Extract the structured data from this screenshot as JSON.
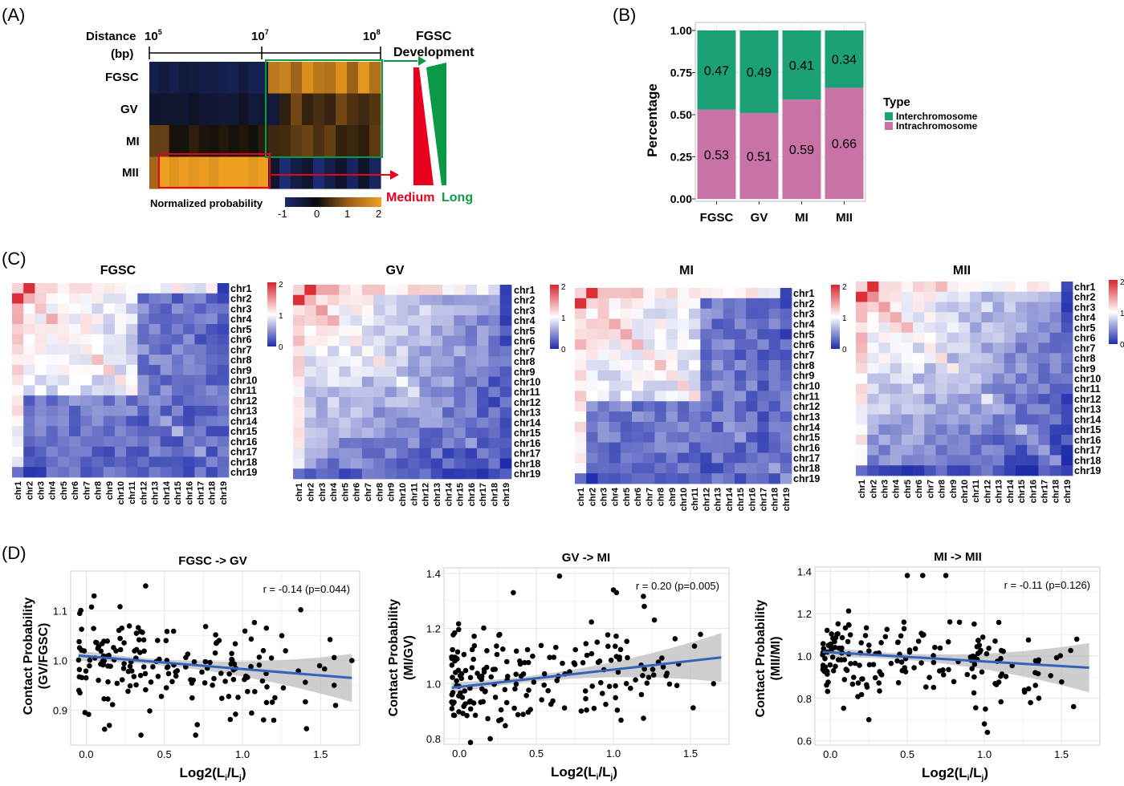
{
  "panels": {
    "a": "(A)",
    "b": "(B)",
    "c": "(C)",
    "d": "(D)"
  },
  "panel_a": {
    "distance_label": "Distance",
    "distance_unit": "(bp)",
    "ticks": [
      {
        "base": "10",
        "exp": "5"
      },
      {
        "base": "10",
        "exp": "7"
      },
      {
        "base": "10",
        "exp": "8"
      }
    ],
    "rows": [
      "FGSC",
      "GV",
      "MI",
      "MII"
    ],
    "dev_title_1": "FGSC",
    "dev_title_2": "Development",
    "medium": "Medium",
    "long": "Long",
    "colorbar_label": "Normalized probability",
    "colorbar_ticks": [
      "-1",
      "0",
      "1",
      "2"
    ],
    "colors": {
      "medium": "#e8001c",
      "long": "#0a9a45",
      "low": "#1a2a6e",
      "mid": "#0a0a0a",
      "high": "#f0a020"
    }
  },
  "chart_data": [
    {
      "type": "bar",
      "panel": "B",
      "stacked": true,
      "categories": [
        "FGSC",
        "GV",
        "MI",
        "MII"
      ],
      "series": [
        {
          "name": "Intrachromosome",
          "values": [
            0.53,
            0.51,
            0.59,
            0.66
          ],
          "labels": [
            "0.53",
            "0.51",
            "0.59",
            "0.66"
          ],
          "color": "#c972a6"
        },
        {
          "name": "Interchromosome",
          "values": [
            0.47,
            0.49,
            0.41,
            0.34
          ],
          "labels": [
            "0.47",
            "0.49",
            "0.41",
            "0.34"
          ],
          "color": "#1ba077"
        }
      ],
      "ylabel": "Percentage",
      "ylim": [
        0,
        1
      ],
      "yticks": [
        "0.00",
        "0.25",
        "0.50",
        "0.75",
        "1.00"
      ],
      "legend_title": "Type",
      "legend_order": [
        "Interchromosome",
        "Intrachromosome"
      ],
      "legend_position": "right",
      "grid": true
    },
    {
      "type": "heatmap",
      "panel": "C",
      "chromosomes": [
        "chr1",
        "chr2",
        "chr3",
        "chr4",
        "chr5",
        "chr6",
        "chr7",
        "chr8",
        "chr9",
        "chr10",
        "chr11",
        "chr12",
        "chr13",
        "chr14",
        "chr15",
        "chr16",
        "chr17",
        "chr18",
        "chr19"
      ],
      "colorbar_ticks": [
        "2",
        "1",
        "0"
      ],
      "colors": {
        "low": "#1e2cab",
        "mid": "#ffffff",
        "high": "#d9232c"
      },
      "maps": [
        {
          "title": "FGSC",
          "clusters": [
            [
              1,
              11
            ],
            [
              12,
              19
            ]
          ],
          "strength": 1.0
        },
        {
          "title": "GV",
          "clusters": [
            [
              1,
              19
            ]
          ],
          "strength": 0.75
        },
        {
          "title": "MI",
          "clusters": [
            [
              1,
              11
            ],
            [
              12,
              19
            ]
          ],
          "strength": 0.85
        },
        {
          "title": "MII",
          "clusters": [
            [
              1,
              19
            ]
          ],
          "strength": 0.6
        }
      ]
    },
    {
      "type": "scatter",
      "panel": "D",
      "title": "FGSC -> GV",
      "annotation": "r = -0.14 (p=0.044)",
      "ylabel_1": "Contact Probability",
      "ylabel_2": "(GV/FGSC)",
      "xlabel": "Log2(L",
      "xlim": [
        -0.1,
        1.75
      ],
      "ylim": [
        0.83,
        1.18
      ],
      "xticks": [
        "0.0",
        "0.5",
        "1.0",
        "1.5"
      ],
      "yticks": [
        "0.9",
        "1.0",
        "1.1"
      ],
      "ytick_values": [
        0.9,
        1.0,
        1.1
      ],
      "fit": {
        "x": [
          -0.05,
          1.7
        ],
        "y": [
          1.01,
          0.965
        ]
      },
      "points": {
        "count": 180,
        "seed": 11,
        "center": 1.0,
        "spread": 0.065,
        "slope": -0.03,
        "outliers": [
          [
            0.38,
            1.15
          ],
          [
            0.05,
            1.13
          ],
          [
            0.7,
            0.85
          ],
          [
            1.7,
            1.0
          ],
          [
            1.2,
            0.88
          ],
          [
            0.35,
            0.85
          ]
        ]
      }
    },
    {
      "type": "scatter",
      "panel": "D",
      "title": "GV -> MI",
      "annotation": "r = 0.20 (p=0.005)",
      "ylabel_1": "Contact Probability",
      "ylabel_2": "(MI/GV)",
      "xlabel": "Log2(L",
      "xlim": [
        -0.1,
        1.75
      ],
      "ylim": [
        0.78,
        1.42
      ],
      "xticks": [
        "0.0",
        "0.5",
        "1.0",
        "1.5"
      ],
      "yticks": [
        "0.8",
        "1.0",
        "1.2",
        "1.4"
      ],
      "ytick_values": [
        0.8,
        1.0,
        1.2,
        1.4
      ],
      "fit": {
        "x": [
          -0.05,
          1.7
        ],
        "y": [
          0.985,
          1.095
        ]
      },
      "points": {
        "count": 190,
        "seed": 23,
        "center": 1.0,
        "spread": 0.11,
        "slope": 0.06,
        "outliers": [
          [
            0.65,
            1.39
          ],
          [
            0.35,
            1.33
          ],
          [
            1.0,
            1.34
          ],
          [
            1.02,
            1.33
          ],
          [
            1.2,
            1.28
          ],
          [
            1.65,
            1.0
          ],
          [
            0.2,
            0.8
          ]
        ]
      }
    },
    {
      "type": "scatter",
      "panel": "D",
      "title": "MI -> MII",
      "annotation": "r = -0.11 (p=0.126)",
      "ylabel_1": "Contact Probability",
      "ylabel_2": "(MII/MI)",
      "xlabel": "Log2(L",
      "xlim": [
        -0.1,
        1.75
      ],
      "ylim": [
        0.58,
        1.42
      ],
      "xticks": [
        "0.0",
        "0.5",
        "1.0",
        "1.5"
      ],
      "yticks": [
        "0.6",
        "0.8",
        "1.0",
        "1.2",
        "1.4"
      ],
      "ytick_values": [
        0.6,
        0.8,
        1.0,
        1.2,
        1.4
      ],
      "fit": {
        "x": [
          -0.05,
          1.68
        ],
        "y": [
          1.02,
          0.945
        ]
      },
      "points": {
        "count": 180,
        "seed": 37,
        "center": 1.0,
        "spread": 0.12,
        "slope": -0.04,
        "outliers": [
          [
            0.5,
            1.38
          ],
          [
            0.6,
            1.38
          ],
          [
            0.75,
            1.38
          ],
          [
            1.0,
            0.68
          ],
          [
            1.02,
            0.64
          ],
          [
            1.3,
            0.78
          ],
          [
            1.6,
            1.08
          ],
          [
            0.25,
            0.7
          ]
        ]
      }
    }
  ]
}
